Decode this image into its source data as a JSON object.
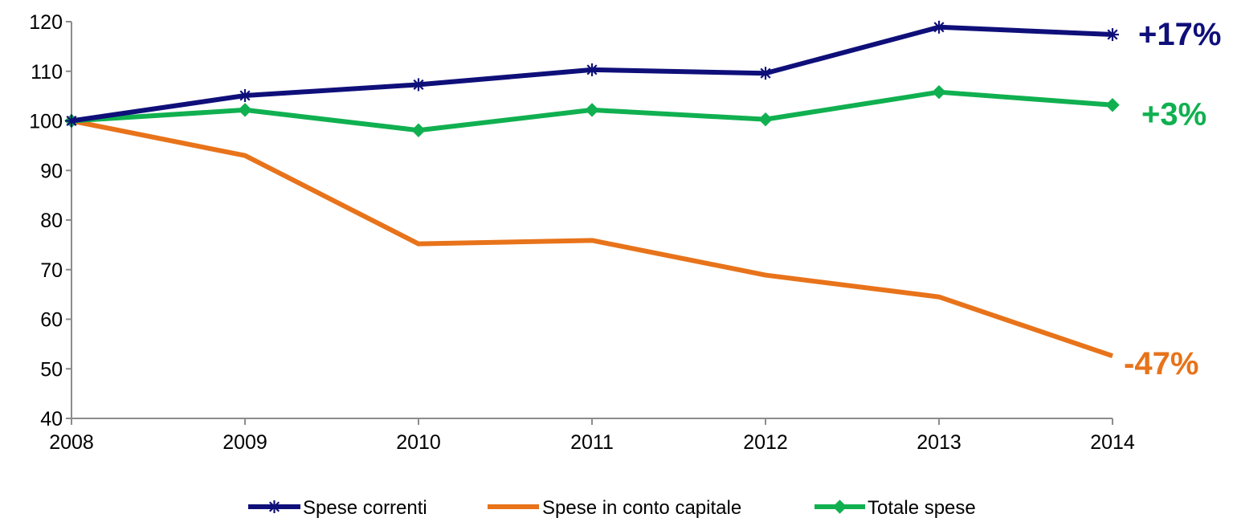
{
  "chart_data": {
    "type": "line",
    "title": "",
    "xlabel": "",
    "ylabel": "",
    "categories": [
      "2008",
      "2009",
      "2010",
      "2011",
      "2012",
      "2013",
      "2014"
    ],
    "ylim": [
      40,
      120
    ],
    "yticks": [
      40,
      50,
      60,
      70,
      80,
      90,
      100,
      110,
      120
    ],
    "grid": false,
    "legend_position": "bottom",
    "series": [
      {
        "name": "Spese correnti",
        "values": [
          100,
          105.1,
          107.3,
          110.3,
          109.6,
          118.9,
          117.4
        ],
        "color": "#0f0f7a",
        "marker": "asterisk",
        "end_label": "+17%"
      },
      {
        "name": "Spese in conto capitale",
        "values": [
          100,
          93,
          75.2,
          75.9,
          68.9,
          64.5,
          52.6
        ],
        "color": "#e8731a",
        "marker": "none",
        "end_label": "-47%"
      },
      {
        "name": "Totale spese",
        "values": [
          100,
          102.2,
          98.1,
          102.2,
          100.3,
          105.8,
          103.2
        ],
        "color": "#10b050",
        "marker": "diamond",
        "end_label": "+3%"
      }
    ]
  }
}
